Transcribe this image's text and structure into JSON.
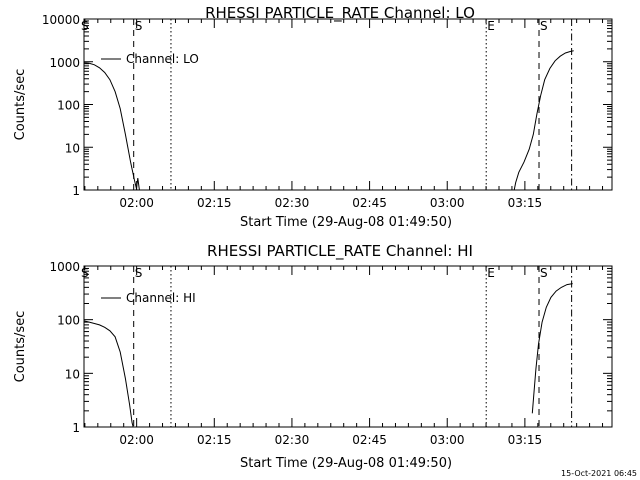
{
  "footer_timestamp": "15-Oct-2021 06:45",
  "chart_data": [
    {
      "type": "line",
      "title": "RHESSI PARTICLE_RATE Channel: LO",
      "xlabel": "Start Time (29-Aug-08 01:49:50)",
      "ylabel": "Counts/sec",
      "yscale": "log",
      "ylim": [
        1,
        10000
      ],
      "xlim_min_since_start": [
        0,
        102
      ],
      "x_ticks": [
        "02:00",
        "02:15",
        "02:30",
        "02:45",
        "03:00",
        "03:15"
      ],
      "y_ticks": [
        "1",
        "10",
        "100",
        "1000",
        "10000"
      ],
      "legend": "Channel: LO",
      "markers": [
        {
          "label": "S",
          "style": "dashed",
          "t": 9.6
        },
        {
          "label": "",
          "style": "dotted",
          "t": 16.8
        },
        {
          "label": "E",
          "style": "dotted",
          "t": 77.7
        },
        {
          "label": "S",
          "style": "dashed",
          "t": 87.9
        },
        {
          "label": "",
          "style": "dashdot",
          "t": 94.2
        }
      ],
      "series": [
        {
          "segments": [
            [
              [
                0,
                950
              ],
              [
                1,
                920
              ],
              [
                2,
                850
              ],
              [
                3,
                720
              ],
              [
                4,
                560
              ],
              [
                5,
                380
              ],
              [
                6,
                200
              ],
              [
                7,
                80
              ],
              [
                8,
                20
              ],
              [
                9,
                4.5
              ],
              [
                9.8,
                1.6
              ],
              [
                10.2,
                1
              ]
            ],
            [
              [
                10.1,
                1
              ],
              [
                10.4,
                1.9
              ],
              [
                10.7,
                1
              ]
            ],
            [
              [
                83.1,
                1
              ],
              [
                83.4,
                1.5
              ],
              [
                84,
                2.6
              ],
              [
                85,
                4.5
              ],
              [
                86,
                9
              ],
              [
                86.8,
                20
              ],
              [
                87.5,
                60
              ],
              [
                88.2,
                160
              ],
              [
                89,
                380
              ],
              [
                90,
                700
              ],
              [
                91,
                1050
              ],
              [
                92,
                1350
              ],
              [
                93,
                1600
              ],
              [
                94,
                1750
              ],
              [
                94.6,
                1800
              ]
            ]
          ]
        }
      ]
    },
    {
      "type": "line",
      "title": "RHESSI PARTICLE_RATE Channel: HI",
      "xlabel": "Start Time (29-Aug-08 01:49:50)",
      "ylabel": "Counts/sec",
      "yscale": "log",
      "ylim": [
        1,
        1000
      ],
      "xlim_min_since_start": [
        0,
        102
      ],
      "x_ticks": [
        "02:00",
        "02:15",
        "02:30",
        "02:45",
        "03:00",
        "03:15"
      ],
      "y_ticks": [
        "1",
        "10",
        "100",
        "1000"
      ],
      "legend": "Channel: HI",
      "markers": [
        {
          "label": "S",
          "style": "dashed",
          "t": 9.6
        },
        {
          "label": "",
          "style": "dotted",
          "t": 16.8
        },
        {
          "label": "E",
          "style": "dotted",
          "t": 77.7
        },
        {
          "label": "S",
          "style": "dashed",
          "t": 87.9
        },
        {
          "label": "",
          "style": "dashdot",
          "t": 94.2
        }
      ],
      "series": [
        {
          "segments": [
            [
              [
                0,
                95
              ],
              [
                1,
                90
              ],
              [
                2,
                85
              ],
              [
                3,
                80
              ],
              [
                4,
                72
              ],
              [
                5,
                62
              ],
              [
                6,
                48
              ],
              [
                7,
                25
              ],
              [
                8,
                8
              ],
              [
                8.8,
                2.6
              ],
              [
                9.3,
                1.2
              ],
              [
                9.5,
                1
              ]
            ],
            [
              [
                86.6,
                1.8
              ],
              [
                86.9,
                4
              ],
              [
                87.3,
                12
              ],
              [
                87.8,
                35
              ],
              [
                88.5,
                90
              ],
              [
                89.3,
                170
              ],
              [
                90.2,
                260
              ],
              [
                91.2,
                340
              ],
              [
                92.2,
                400
              ],
              [
                93.3,
                450
              ],
              [
                94.4,
                470
              ]
            ]
          ]
        }
      ]
    }
  ]
}
